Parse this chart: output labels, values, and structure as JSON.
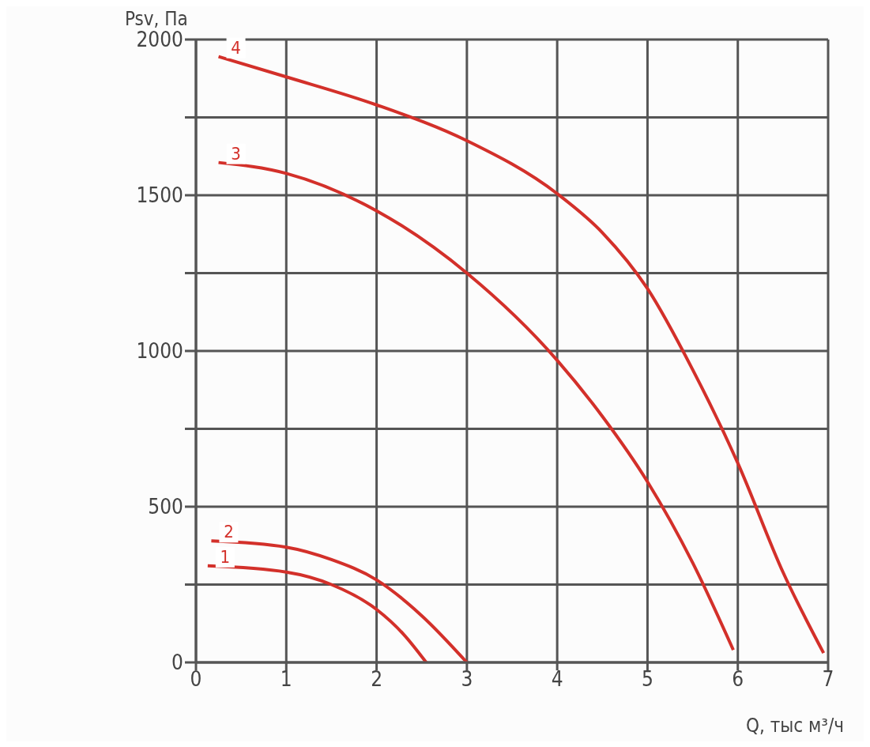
{
  "chart_data": {
    "type": "line",
    "xlabel": "Q, тыс м³/ч",
    "ylabel": "Psv, Па",
    "xlim": [
      0,
      7
    ],
    "xticks": [
      0,
      1,
      2,
      3,
      4,
      5,
      6,
      7
    ],
    "ylim": [
      0,
      2000
    ],
    "yticks": [
      0,
      {
        "value": 250,
        "label": null
      },
      500,
      {
        "value": 750,
        "label": null
      },
      1000,
      {
        "value": 1250,
        "label": null
      },
      1500,
      {
        "value": 1750,
        "label": null
      },
      2000
    ],
    "grid": true,
    "marker": "none",
    "line_style": "solid",
    "series": [
      {
        "name": "1",
        "color": "#d3302a",
        "x": [
          0.13,
          1,
          1.5,
          2,
          2.3,
          2.55
        ],
        "values": [
          310,
          290,
          250,
          170,
          90,
          0
        ]
      },
      {
        "name": "2",
        "color": "#d3302a",
        "x": [
          0.17,
          1,
          1.5,
          2,
          2.5,
          3
        ],
        "values": [
          390,
          370,
          330,
          265,
          150,
          0
        ]
      },
      {
        "name": "3",
        "color": "#d3302a",
        "x": [
          0.25,
          1,
          2,
          3,
          4,
          4.5,
          5,
          5.5,
          5.95
        ],
        "values": [
          1605,
          1570,
          1450,
          1250,
          970,
          790,
          580,
          320,
          40
        ]
      },
      {
        "name": "4",
        "color": "#d3302a",
        "x": [
          0.25,
          1,
          2,
          3,
          4,
          4.5,
          5,
          5.5,
          6,
          6.5,
          6.95
        ],
        "values": [
          1945,
          1880,
          1790,
          1675,
          1505,
          1380,
          1200,
          940,
          640,
          290,
          30
        ]
      }
    ]
  }
}
